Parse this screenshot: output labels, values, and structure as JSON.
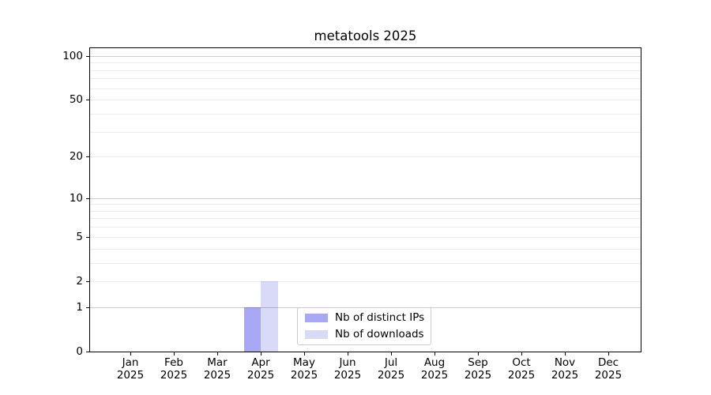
{
  "chart_data": {
    "type": "bar",
    "title": "metatools 2025",
    "categories": [
      "Jan 2025",
      "Feb 2025",
      "Mar 2025",
      "Apr 2025",
      "May 2025",
      "Jun 2025",
      "Jul 2025",
      "Aug 2025",
      "Sep 2025",
      "Oct 2025",
      "Nov 2025",
      "Dec 2025"
    ],
    "series": [
      {
        "name": "Nb of distinct IPs",
        "color": "#a8a8f5",
        "values": [
          0,
          0,
          0,
          1,
          0,
          0,
          0,
          0,
          0,
          0,
          0,
          0
        ]
      },
      {
        "name": "Nb of downloads",
        "color": "#d9d9f8",
        "values": [
          0,
          0,
          0,
          2,
          0,
          0,
          0,
          0,
          0,
          0,
          0,
          0
        ]
      }
    ],
    "yscale": "log1p",
    "ylim": [
      0,
      113
    ],
    "ytick_values": [
      0,
      1,
      2,
      5,
      10,
      20,
      50,
      100
    ],
    "ytick_labels": [
      "0",
      "1",
      "2",
      "5",
      "10",
      "20",
      "50",
      "100"
    ],
    "major_gridlines": [
      1,
      10,
      100
    ],
    "minor_gridlines": [
      2,
      3,
      4,
      5,
      6,
      7,
      8,
      9,
      20,
      30,
      40,
      50,
      60,
      70,
      80,
      90
    ],
    "grid": true,
    "legend_position": "lower center",
    "colors": {
      "grid_major": "rgba(0,0,0,0.20)",
      "grid_minor": "rgba(0,0,0,0.07)",
      "axis": "#000000",
      "text": "#000000",
      "background": "#ffffff"
    }
  }
}
